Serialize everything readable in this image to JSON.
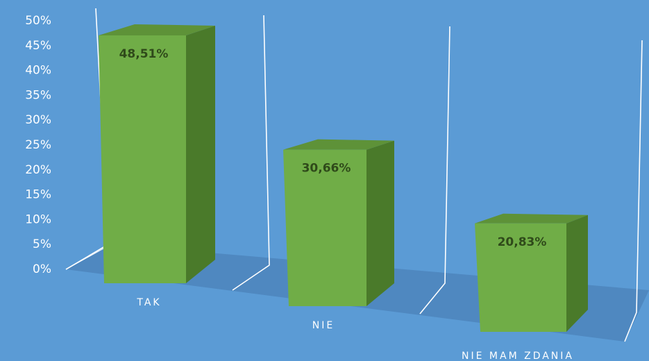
{
  "chart_data": {
    "type": "bar",
    "title": "",
    "xlabel": "",
    "ylabel": "",
    "categories": [
      "TAK",
      "NIE",
      "NIE MAM ZDANIA"
    ],
    "values": [
      48.51,
      30.66,
      20.83
    ],
    "data_labels": [
      "48,51%",
      "30,66%",
      "20,83%"
    ],
    "ylim": [
      0,
      50
    ],
    "yticks": [
      0,
      5,
      10,
      15,
      20,
      25,
      30,
      35,
      40,
      45,
      50
    ],
    "ytick_labels": [
      "0%",
      "5%",
      "10%",
      "15%",
      "20%",
      "25%",
      "30%",
      "35%",
      "40%",
      "45%",
      "50%"
    ],
    "grid": false,
    "legend": "none",
    "colors": {
      "background": "#5b9bd5",
      "bar_front": "#70ad47",
      "bar_side": "#4a7a2a",
      "bar_top": "#5e9238",
      "floor": "#4f88c0",
      "wall_lines": "#ffffff",
      "label_text": "#2f4a1a"
    }
  }
}
